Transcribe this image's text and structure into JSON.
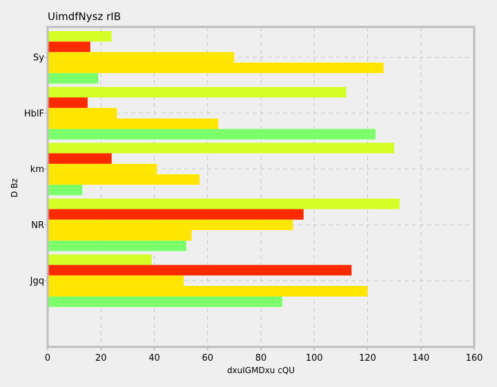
{
  "chart_data": {
    "type": "bar",
    "orientation": "horizontal",
    "title": "UimdfNysz rIB",
    "xlabel": "dxuIGMDxu cQU",
    "ylabel": "D Bz",
    "categories": [
      "Sy",
      "HblF",
      "km",
      "NR",
      "Jgq"
    ],
    "xlim": [
      0,
      160
    ],
    "xticks": [
      0,
      20,
      40,
      60,
      80,
      100,
      120,
      140,
      160
    ],
    "grid": true,
    "series": [
      {
        "color": "#d4ff26",
        "values": [
          24,
          112,
          130,
          132,
          39
        ]
      },
      {
        "color": "#ff2a00",
        "values": [
          16,
          15,
          24,
          96,
          114
        ]
      },
      {
        "color": "#ffe600",
        "values": [
          70,
          26,
          41,
          92,
          51
        ]
      },
      {
        "color": "#ffe600",
        "values": [
          126,
          64,
          57,
          54,
          120
        ]
      },
      {
        "color": "#7cff6a",
        "values": [
          19,
          123,
          13,
          52,
          88
        ]
      }
    ]
  }
}
